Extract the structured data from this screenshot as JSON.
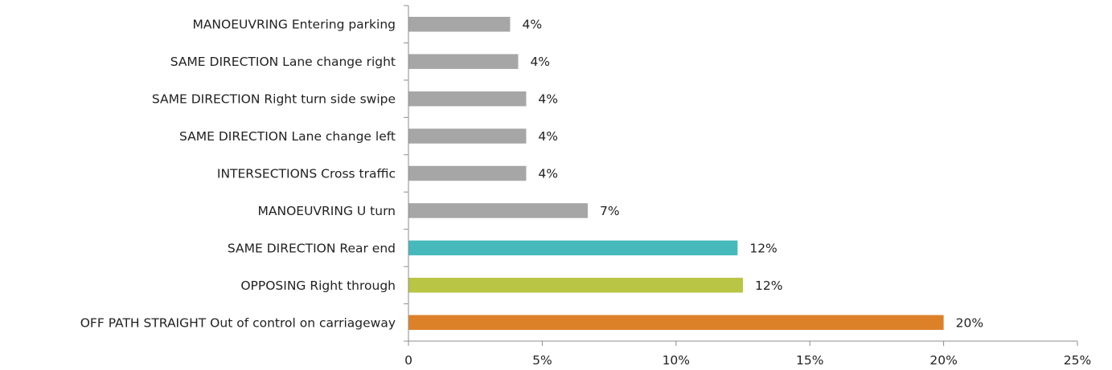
{
  "chart_data": {
    "type": "bar",
    "orientation": "horizontal",
    "title": "",
    "xlabel": "",
    "ylabel": "",
    "categories": [
      "MANOEUVRING Entering parking",
      "SAME DIRECTION Lane change right",
      "SAME DIRECTION Right turn side swipe",
      "SAME DIRECTION Lane change left",
      "INTERSECTIONS Cross traffic",
      "MANOEUVRING U turn",
      "SAME DIRECTION Rear end",
      "OPPOSING Right through",
      "OFF PATH STRAIGHT Out of control on carriageway"
    ],
    "values": [
      3.8,
      4.1,
      4.4,
      4.4,
      4.4,
      6.7,
      12.3,
      12.5,
      20.0
    ],
    "value_labels": [
      "4%",
      "4%",
      "4%",
      "4%",
      "4%",
      "7%",
      "12%",
      "12%",
      "20%"
    ],
    "colors": [
      "#a6a6a6",
      "#a6a6a6",
      "#a6a6a6",
      "#a6a6a6",
      "#a6a6a6",
      "#a6a6a6",
      "#46b9bc",
      "#b9c544",
      "#dd8129"
    ],
    "xlim": [
      0,
      25
    ],
    "xticks": [
      0,
      5,
      10,
      15,
      20,
      25
    ],
    "xtick_labels": [
      "0",
      "5%",
      "10%",
      "15%",
      "20%",
      "25%"
    ],
    "grid": false,
    "legend": "none"
  }
}
